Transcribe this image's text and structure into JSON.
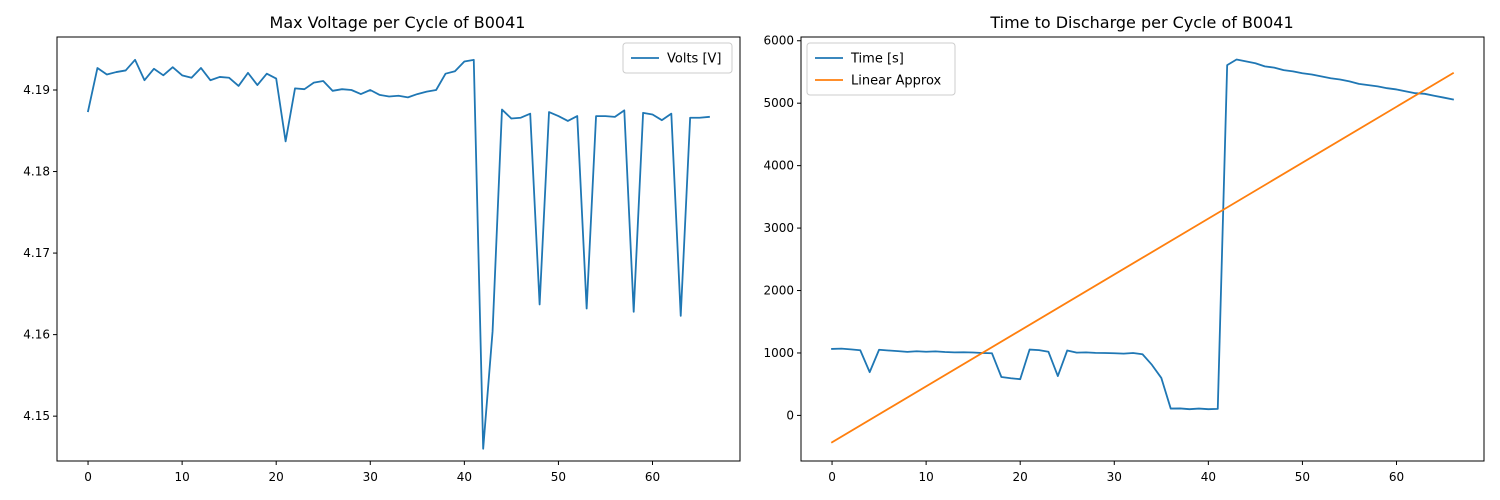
{
  "chart_data": [
    {
      "type": "line",
      "title": "Max Voltage per Cycle of B0041",
      "xlabel": "",
      "ylabel": "",
      "xlim": [
        -3.3,
        69.3
      ],
      "ylim": [
        4.1445,
        4.1965
      ],
      "xticks": [
        0,
        10,
        20,
        30,
        40,
        50,
        60
      ],
      "yticks": [
        4.15,
        4.16,
        4.17,
        4.18,
        4.19
      ],
      "ytick_labels": [
        "4.15",
        "4.16",
        "4.17",
        "4.18",
        "4.19"
      ],
      "grid": false,
      "legend": "upper right",
      "series": [
        {
          "name": "Volts [V]",
          "color": "#1f77b4",
          "x": [
            0,
            1,
            2,
            3,
            4,
            5,
            6,
            7,
            8,
            9,
            10,
            11,
            12,
            13,
            14,
            15,
            16,
            17,
            18,
            19,
            20,
            21,
            22,
            23,
            24,
            25,
            26,
            27,
            28,
            29,
            30,
            31,
            32,
            33,
            34,
            35,
            36,
            37,
            38,
            39,
            40,
            41,
            42,
            43,
            44,
            45,
            46,
            47,
            48,
            49,
            50,
            51,
            52,
            53,
            54,
            55,
            56,
            57,
            58,
            59,
            60,
            61,
            62,
            63,
            64,
            65,
            66
          ],
          "values": [
            4.1874,
            4.1927,
            4.1919,
            4.1922,
            4.1924,
            4.1937,
            4.1912,
            4.1926,
            4.1918,
            4.1928,
            4.1918,
            4.1915,
            4.1927,
            4.1912,
            4.1916,
            4.1915,
            4.1905,
            4.1921,
            4.1906,
            4.192,
            4.1914,
            4.1837,
            4.1902,
            4.1901,
            4.1909,
            4.1911,
            4.1899,
            4.1901,
            4.19,
            4.1895,
            4.19,
            4.1894,
            4.1892,
            4.1893,
            4.1891,
            4.1895,
            4.1898,
            4.19,
            4.192,
            4.1923,
            4.1935,
            4.1937,
            4.146,
            4.1604,
            4.1876,
            4.1865,
            4.1866,
            4.1871,
            4.1637,
            4.1873,
            4.1868,
            4.1862,
            4.1868,
            4.1632,
            4.1868,
            4.1868,
            4.1867,
            4.1875,
            4.1628,
            4.1872,
            4.187,
            4.1863,
            4.1871,
            4.1623,
            4.1866,
            4.1866,
            4.1867
          ]
        }
      ]
    },
    {
      "type": "line",
      "title": "Time to Discharge per Cycle of B0041",
      "xlabel": "",
      "ylabel": "",
      "xlim": [
        -3.3,
        69.3
      ],
      "ylim": [
        -730,
        6060
      ],
      "xticks": [
        0,
        10,
        20,
        30,
        40,
        50,
        60
      ],
      "yticks": [
        0,
        1000,
        2000,
        3000,
        4000,
        5000,
        6000
      ],
      "ytick_labels": [
        "0",
        "1000",
        "2000",
        "3000",
        "4000",
        "5000",
        "6000"
      ],
      "grid": false,
      "legend": "upper left",
      "series": [
        {
          "name": "Time [s]",
          "color": "#1f77b4",
          "x": [
            0,
            1,
            2,
            3,
            4,
            5,
            6,
            7,
            8,
            9,
            10,
            11,
            12,
            13,
            14,
            15,
            16,
            17,
            18,
            19,
            20,
            21,
            22,
            23,
            24,
            25,
            26,
            27,
            28,
            29,
            30,
            31,
            32,
            33,
            34,
            35,
            36,
            37,
            38,
            39,
            40,
            41,
            42,
            43,
            44,
            45,
            46,
            47,
            48,
            49,
            50,
            51,
            52,
            53,
            54,
            55,
            56,
            57,
            58,
            59,
            60,
            61,
            62,
            63,
            64,
            65,
            66
          ],
          "values": [
            1065,
            1070,
            1058,
            1043,
            693,
            1052,
            1040,
            1030,
            1018,
            1028,
            1020,
            1025,
            1015,
            1010,
            1012,
            1008,
            1000,
            995,
            615,
            595,
            580,
            1055,
            1045,
            1020,
            630,
            1040,
            1005,
            1010,
            1002,
            1000,
            995,
            990,
            1000,
            980,
            810,
            600,
            110,
            112,
            100,
            110,
            100,
            105,
            5610,
            5700,
            5670,
            5640,
            5590,
            5570,
            5530,
            5510,
            5480,
            5460,
            5430,
            5400,
            5380,
            5350,
            5310,
            5290,
            5270,
            5240,
            5220,
            5190,
            5160,
            5150,
            5120,
            5090,
            5060
          ]
        },
        {
          "name": "Linear Approx",
          "color": "#ff7f0e",
          "x": [
            0,
            66
          ],
          "values": [
            -430,
            5480
          ]
        }
      ]
    }
  ]
}
